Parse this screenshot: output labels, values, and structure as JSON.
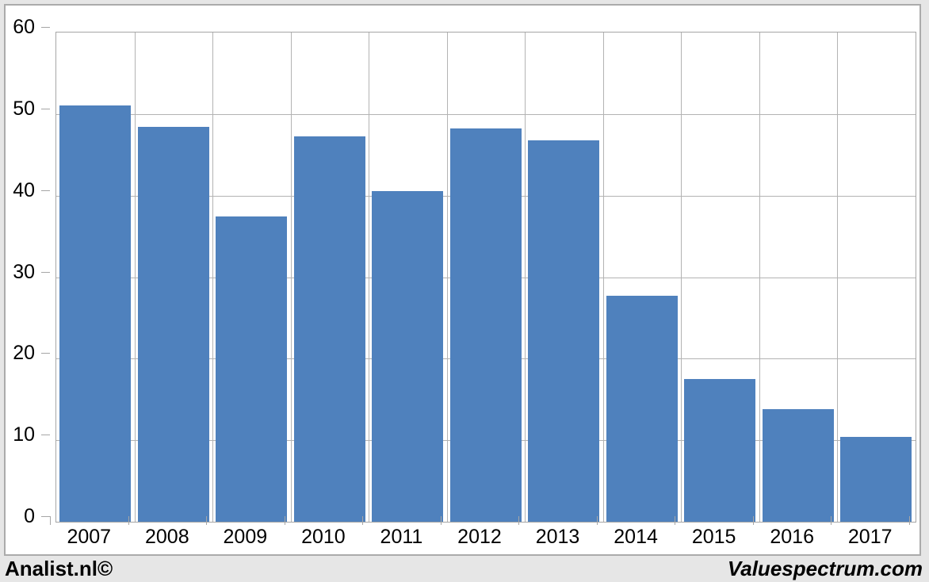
{
  "chart_data": {
    "type": "bar",
    "title": "",
    "xlabel": "",
    "ylabel": "",
    "categories": [
      "2007",
      "2008",
      "2009",
      "2010",
      "2011",
      "2012",
      "2013",
      "2014",
      "2015",
      "2016",
      "2017"
    ],
    "values": [
      51.1,
      48.4,
      37.4,
      47.3,
      40.6,
      48.2,
      46.8,
      27.7,
      17.5,
      13.8,
      10.4
    ],
    "ylim": [
      0,
      60
    ],
    "yticks": [
      0,
      10,
      20,
      30,
      40,
      50,
      60
    ],
    "grid": true,
    "legend": false,
    "bar_color": "#4F81BD"
  },
  "footer": {
    "left_brand": "Analist.nl©",
    "right_brand": "Valuespectrum.com"
  },
  "colors": {
    "page_background": "#E6E6E6",
    "chart_background": "#FFFFFF",
    "frame_border": "#ABABAB",
    "plot_border": "#A6A6A6",
    "gridline": "#B3B3B3",
    "axis_tick": "#A6A6A6",
    "bar_fill": "#4F81BD",
    "text": "#000000"
  }
}
